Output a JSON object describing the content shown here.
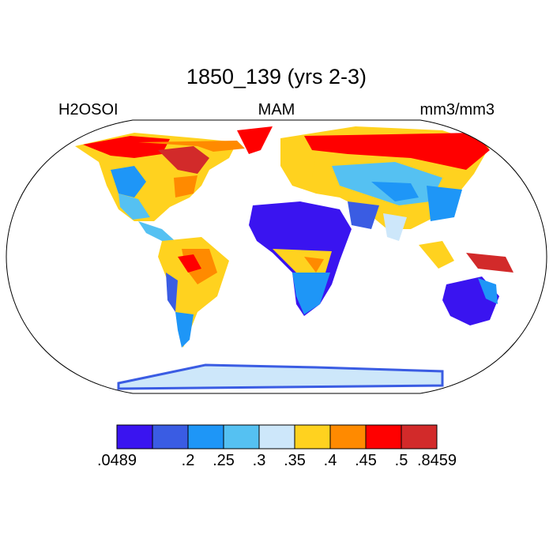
{
  "title": "1850_139 (yrs 2-3)",
  "left_label": "H2OSOI",
  "center_label": "MAM",
  "right_label": "mm3/mm3",
  "colorbar": {
    "colors": [
      "#3a14f0",
      "#3a5ce3",
      "#1e96f7",
      "#55c1f2",
      "#cde7fa",
      "#ffd21f",
      "#ff8a00",
      "#ff0000",
      "#d22a2a"
    ],
    "labels": [
      ".0489",
      "",
      ".2",
      ".25",
      ".3",
      ".35",
      ".4",
      ".45",
      ".5",
      ".8459"
    ]
  },
  "palette": {
    "ocean": "#ffffff",
    "coast": "#000000"
  }
}
